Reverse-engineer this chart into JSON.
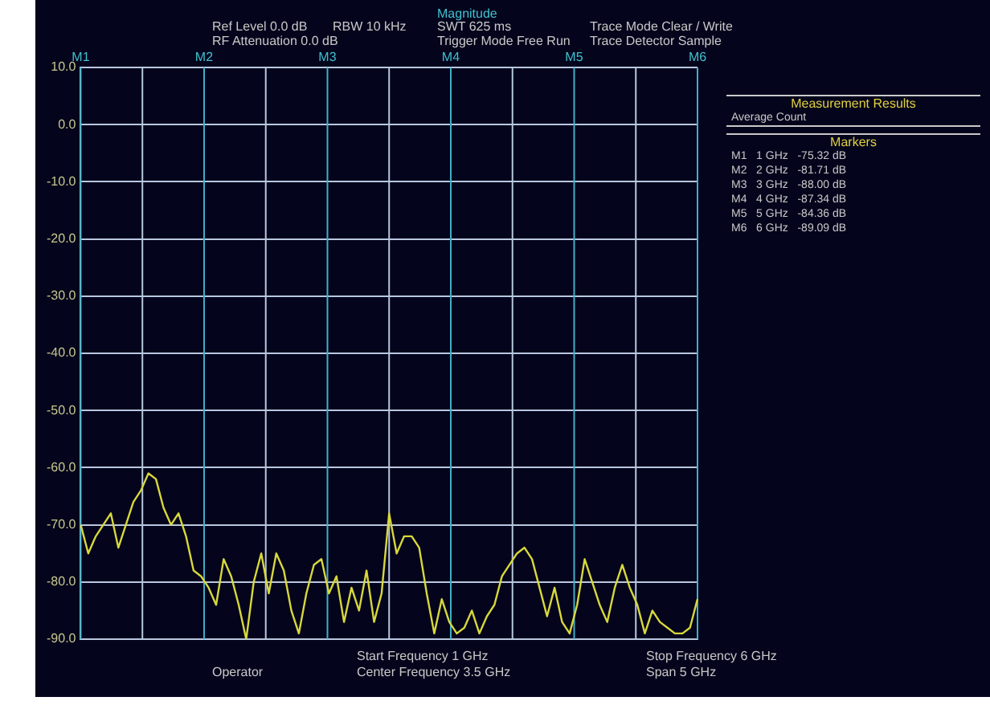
{
  "chart_data": {
    "type": "line",
    "categories": [
      null,
      null,
      null,
      null,
      null,
      null,
      null,
      null,
      null,
      null,
      null,
      null,
      null,
      null,
      null,
      null,
      null,
      null,
      null,
      null,
      null,
      null,
      null,
      null,
      null,
      null,
      null,
      null,
      null,
      null,
      null,
      null,
      null,
      null,
      null,
      null,
      null,
      null,
      null,
      null,
      null,
      null,
      null,
      null,
      null,
      null,
      null,
      null,
      null,
      null,
      null,
      null,
      null,
      null,
      null,
      null,
      null,
      null,
      null,
      null,
      null,
      null,
      null,
      null,
      null,
      null,
      null,
      null,
      null,
      null,
      null,
      null,
      null,
      null,
      null,
      null,
      null,
      null,
      null,
      null,
      null,
      null,
      null
    ],
    "series": [
      {
        "color": "#d8d83c",
        "values": [
          -70,
          -75,
          -72,
          -70,
          -68,
          -74,
          -70,
          -66,
          -64,
          -61,
          -62,
          -67,
          -70,
          -68,
          -72,
          -78,
          -79,
          -81,
          -84,
          -76,
          -79,
          -84,
          -90,
          -80,
          -75,
          -82,
          -75,
          -78,
          -85,
          -89,
          -82,
          -77,
          -76,
          -82,
          -79,
          -87,
          -81,
          -85,
          -78,
          -87,
          -82,
          -68,
          -75,
          -72,
          -72,
          -74,
          -82,
          -89,
          -83,
          -87,
          -89,
          -88,
          -85,
          -89,
          -86,
          -84,
          -79,
          -77,
          -75,
          -74,
          -76,
          -81,
          -86,
          -81,
          -87,
          -89,
          -84,
          -76,
          -80,
          -84,
          -87,
          -81,
          -77,
          -81,
          -84,
          -89,
          -85,
          -87,
          -88,
          -89,
          -89,
          -88,
          -83
        ]
      }
    ],
    "ylim": [
      -90,
      10
    ],
    "yticks": [
      {
        "value": 10,
        "label": "10.0"
      },
      {
        "value": 0,
        "label": "0.0"
      },
      {
        "value": -10,
        "label": "-10.0"
      },
      {
        "value": -20,
        "label": "-20.0"
      },
      {
        "value": -30,
        "label": "-30.0"
      },
      {
        "value": -40,
        "label": "-40.0"
      },
      {
        "value": -50,
        "label": "-50.0"
      },
      {
        "value": -60,
        "label": "-60.0"
      },
      {
        "value": -70,
        "label": "-70.0"
      },
      {
        "value": -80,
        "label": "-80.0"
      },
      {
        "value": -90,
        "label": "-90.0"
      }
    ],
    "grid": true,
    "legend": false,
    "marker": "none",
    "line_style": "solid",
    "annotations": [
      "Magnitude",
      "Ref Level  0.0 dB",
      "RF Attenuation  0.0 dB",
      "RBW  10 kHz",
      "SWT  625 ms",
      "Trigger Mode  Free Run",
      "Trace Mode  Clear / Write",
      "Trace Detector  Sample",
      "Measurement Results",
      "Average Count",
      "Markers",
      "M1   1 GHz   -75.32 dB",
      "M2   2 GHz   -81.71 dB",
      "M3   3 GHz   -88.00 dB",
      "M4   4 GHz   -87.34 dB",
      "M5   5 GHz   -84.36 dB",
      "M6   6 GHz   -89.09 dB",
      "Start Frequency  1 GHz",
      "Center Frequency  3.5 GHz",
      "Stop Frequency  6 GHz",
      "Span  5 GHz",
      "Operator",
      "M1",
      "M2",
      "M3",
      "M4",
      "M5",
      "M6"
    ]
  }
}
